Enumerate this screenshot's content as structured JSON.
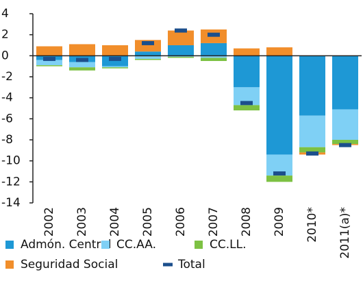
{
  "chart_data": {
    "type": "stacked_bar",
    "categories": [
      "2002",
      "2003",
      "2004",
      "2005",
      "2006",
      "2007",
      "2008",
      "2009",
      "2010*",
      "2011(a)*"
    ],
    "series": [
      {
        "name": "Admón. Central",
        "color": "#1e98d5",
        "values": [
          -0.4,
          -0.6,
          -1.0,
          0.4,
          1.0,
          1.2,
          -3.0,
          -9.4,
          -5.7,
          -5.1
        ]
      },
      {
        "name": "CC.AA.",
        "color": "#7fd0f5",
        "values": [
          -0.5,
          -0.5,
          -0.1,
          -0.3,
          -0.1,
          -0.2,
          -1.7,
          -2.0,
          -3.0,
          -2.9
        ]
      },
      {
        "name": "CC.LL.",
        "color": "#7dc143",
        "values": [
          -0.1,
          -0.3,
          -0.1,
          -0.1,
          -0.1,
          -0.3,
          -0.5,
          -0.6,
          -0.5,
          -0.4
        ]
      },
      {
        "name": "Seguridad Social",
        "color": "#f18e2b",
        "values": [
          0.9,
          1.1,
          1.0,
          1.1,
          1.4,
          1.3,
          0.7,
          0.8,
          -0.2,
          -0.1
        ]
      },
      {
        "name": "Total",
        "color": "#1c4f8c",
        "values": [
          -0.3,
          -0.4,
          -0.3,
          1.2,
          2.4,
          2.0,
          -4.5,
          -11.2,
          -9.3,
          -8.5
        ]
      }
    ],
    "ylim": [
      -14,
      4
    ],
    "yticks": [
      -14,
      -12,
      -10,
      -8,
      -6,
      -4,
      -2,
      0,
      2,
      4
    ]
  }
}
